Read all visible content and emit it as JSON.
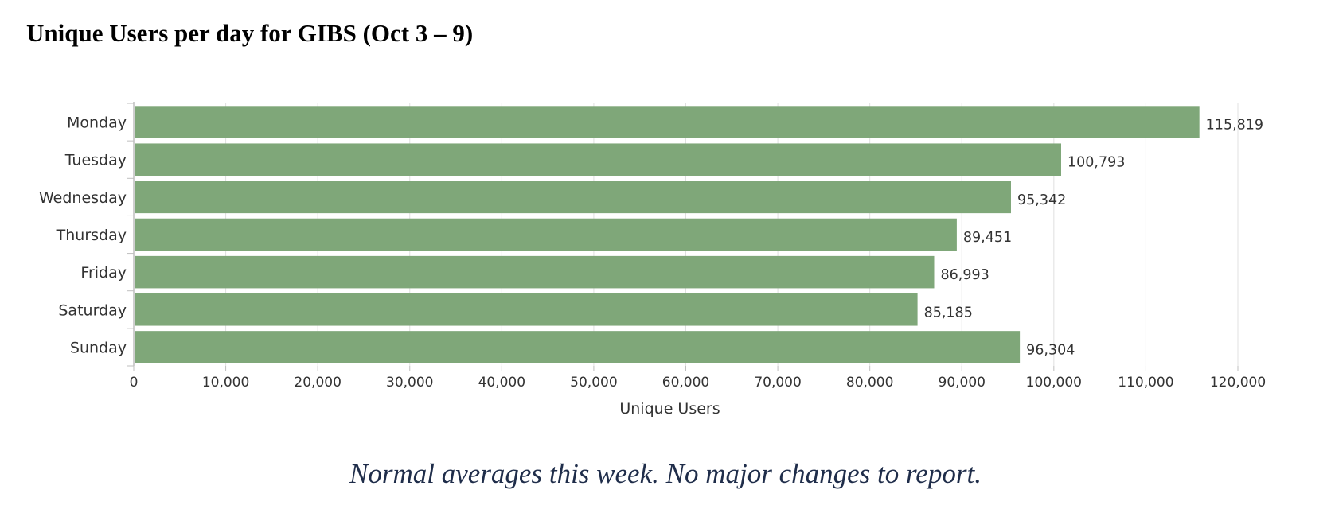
{
  "title": "Unique Users per day for GIBS (Oct 3 – 9)",
  "footer_note": "Normal averages this week.  No major changes to report.",
  "colors": {
    "bar": "#7fa779",
    "grid": "#e0e0e0",
    "axis": "#bfbfbf",
    "text": "#333333"
  },
  "chart_data": {
    "type": "bar",
    "orientation": "horizontal",
    "categories": [
      "Monday",
      "Tuesday",
      "Wednesday",
      "Thursday",
      "Friday",
      "Saturday",
      "Sunday"
    ],
    "values": [
      115819,
      100793,
      95342,
      89451,
      86993,
      85185,
      96304
    ],
    "value_labels": [
      "115,819",
      "100,793",
      "95,342",
      "89,451",
      "86,993",
      "85,185",
      "96,304"
    ],
    "xlabel": "Unique Users",
    "ylabel": "",
    "xlim": [
      0,
      120000
    ],
    "ticks": [
      0,
      10000,
      20000,
      30000,
      40000,
      50000,
      60000,
      70000,
      80000,
      90000,
      100000,
      110000,
      120000
    ],
    "tick_labels": [
      "0",
      "10,000",
      "20,000",
      "30,000",
      "40,000",
      "50,000",
      "60,000",
      "70,000",
      "80,000",
      "90,000",
      "100,000",
      "110,000",
      "120,000"
    ],
    "grid": true,
    "legend": "none"
  }
}
